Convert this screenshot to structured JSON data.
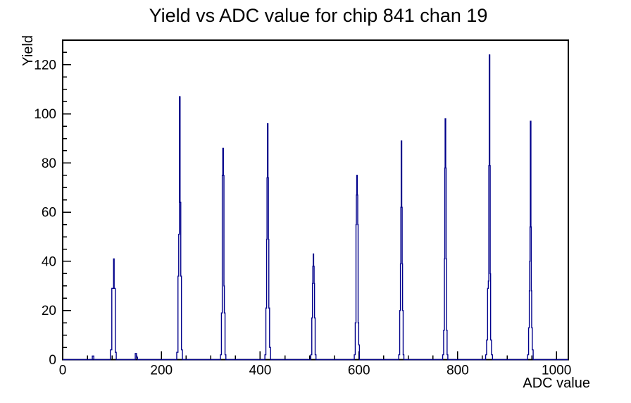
{
  "window": {
    "background": "#ffffff"
  },
  "chart_data": {
    "type": "bar",
    "subtype": "root-style step histogram of narrow peaks",
    "title": "Yield vs ADC value for chip 841 chan 19",
    "xlabel": "ADC value",
    "ylabel": "Yield",
    "xlim": [
      0,
      1024
    ],
    "ylim": [
      0,
      130
    ],
    "grid": false,
    "legend": null,
    "colors": {
      "line": "#00008b",
      "axis": "#000000",
      "background": "#ffffff",
      "text": "#000000"
    },
    "x_axis": {
      "major_ticks": [
        0,
        200,
        400,
        600,
        800,
        1000
      ],
      "major_labels": [
        "0",
        "200",
        "400",
        "600",
        "800",
        "1000"
      ],
      "minor_step": 50
    },
    "y_axis": {
      "major_ticks": [
        0,
        20,
        40,
        60,
        80,
        100,
        120
      ],
      "major_labels": [
        "0",
        "20",
        "40",
        "60",
        "80",
        "100",
        "120"
      ],
      "minor_step": 5
    },
    "peaks": [
      {
        "center": 61,
        "max_yield": 1.5,
        "profile": [
          [
            60,
            0
          ],
          [
            60,
            1.5
          ],
          [
            63,
            1.5
          ],
          [
            63,
            0
          ]
        ]
      },
      {
        "center": 104,
        "max_yield": 41,
        "profile": [
          [
            96.5,
            0
          ],
          [
            96.5,
            4
          ],
          [
            99.5,
            4
          ],
          [
            99.5,
            29
          ],
          [
            103,
            29
          ],
          [
            103,
            41
          ],
          [
            104.3,
            41
          ],
          [
            104.3,
            29
          ],
          [
            106.5,
            29
          ],
          [
            106.5,
            3
          ],
          [
            108.5,
            3
          ],
          [
            108.5,
            0
          ]
        ]
      },
      {
        "center": 149,
        "max_yield": 2.5,
        "profile": [
          [
            147,
            0
          ],
          [
            147,
            2.5
          ],
          [
            149.5,
            2.5
          ],
          [
            149.5,
            1
          ],
          [
            151.5,
            1
          ],
          [
            151.5,
            0
          ]
        ]
      },
      {
        "center": 237,
        "max_yield": 107,
        "profile": [
          [
            231,
            0
          ],
          [
            231,
            3
          ],
          [
            233.5,
            3
          ],
          [
            233.5,
            34
          ],
          [
            235,
            34
          ],
          [
            235,
            51
          ],
          [
            236.3,
            51
          ],
          [
            236.3,
            107
          ],
          [
            237.8,
            107
          ],
          [
            237.8,
            64
          ],
          [
            239.2,
            64
          ],
          [
            239.2,
            34
          ],
          [
            240.5,
            34
          ],
          [
            240.5,
            4
          ],
          [
            242.5,
            4
          ],
          [
            242.5,
            0
          ]
        ]
      },
      {
        "center": 325,
        "max_yield": 86,
        "profile": [
          [
            319.5,
            0
          ],
          [
            319.5,
            2
          ],
          [
            321.5,
            2
          ],
          [
            321.5,
            19
          ],
          [
            323.2,
            19
          ],
          [
            323.2,
            75
          ],
          [
            324.2,
            75
          ],
          [
            324.2,
            86
          ],
          [
            325.5,
            86
          ],
          [
            325.5,
            75
          ],
          [
            326.6,
            75
          ],
          [
            326.6,
            30
          ],
          [
            327.4,
            30
          ],
          [
            327.4,
            19
          ],
          [
            328.8,
            19
          ],
          [
            328.8,
            2
          ],
          [
            330.5,
            2
          ],
          [
            330.5,
            0
          ]
        ]
      },
      {
        "center": 415,
        "max_yield": 96,
        "profile": [
          [
            409.5,
            0
          ],
          [
            409.5,
            2
          ],
          [
            411.5,
            2
          ],
          [
            411.5,
            21
          ],
          [
            413,
            21
          ],
          [
            413,
            49
          ],
          [
            413.8,
            49
          ],
          [
            413.8,
            74
          ],
          [
            414.6,
            74
          ],
          [
            414.6,
            96
          ],
          [
            415.8,
            96
          ],
          [
            415.8,
            74
          ],
          [
            416.7,
            74
          ],
          [
            416.7,
            49
          ],
          [
            417.5,
            49
          ],
          [
            417.5,
            21
          ],
          [
            419,
            21
          ],
          [
            419,
            5
          ],
          [
            421,
            5
          ],
          [
            421,
            0
          ]
        ]
      },
      {
        "center": 508,
        "max_yield": 43,
        "profile": [
          [
            502.5,
            0
          ],
          [
            502.5,
            2
          ],
          [
            504.5,
            2
          ],
          [
            504.5,
            17
          ],
          [
            505.8,
            17
          ],
          [
            505.8,
            31
          ],
          [
            506.6,
            31
          ],
          [
            506.6,
            38
          ],
          [
            507.3,
            38
          ],
          [
            507.3,
            43
          ],
          [
            508.3,
            43
          ],
          [
            508.3,
            38
          ],
          [
            509.2,
            38
          ],
          [
            509.2,
            31
          ],
          [
            510,
            31
          ],
          [
            510,
            17
          ],
          [
            511.3,
            17
          ],
          [
            511.3,
            2
          ],
          [
            513,
            2
          ],
          [
            513,
            0
          ]
        ]
      },
      {
        "center": 596,
        "max_yield": 75,
        "profile": [
          [
            590.5,
            0
          ],
          [
            590.5,
            2
          ],
          [
            592.5,
            2
          ],
          [
            592.5,
            15
          ],
          [
            594,
            15
          ],
          [
            594,
            55
          ],
          [
            594.8,
            55
          ],
          [
            594.8,
            67
          ],
          [
            595.5,
            67
          ],
          [
            595.5,
            75
          ],
          [
            596.7,
            75
          ],
          [
            596.7,
            67
          ],
          [
            597.5,
            67
          ],
          [
            597.5,
            55
          ],
          [
            598.3,
            55
          ],
          [
            598.3,
            15
          ],
          [
            599.5,
            15
          ],
          [
            599.5,
            6
          ],
          [
            601,
            6
          ],
          [
            601,
            0
          ]
        ]
      },
      {
        "center": 686,
        "max_yield": 89,
        "profile": [
          [
            680.5,
            0
          ],
          [
            680.5,
            2
          ],
          [
            682.5,
            2
          ],
          [
            682.5,
            20
          ],
          [
            684,
            20
          ],
          [
            684,
            39
          ],
          [
            684.8,
            39
          ],
          [
            684.8,
            62
          ],
          [
            685.5,
            62
          ],
          [
            685.5,
            89
          ],
          [
            686.7,
            89
          ],
          [
            686.7,
            62
          ],
          [
            687.5,
            62
          ],
          [
            687.5,
            39
          ],
          [
            688.3,
            39
          ],
          [
            688.3,
            20
          ],
          [
            689.5,
            20
          ],
          [
            689.5,
            2
          ],
          [
            691,
            2
          ],
          [
            691,
            0
          ]
        ]
      },
      {
        "center": 775,
        "max_yield": 98,
        "profile": [
          [
            769.5,
            0
          ],
          [
            769.5,
            2
          ],
          [
            771.5,
            2
          ],
          [
            771.5,
            12
          ],
          [
            773,
            12
          ],
          [
            773,
            41
          ],
          [
            773.8,
            41
          ],
          [
            773.8,
            78
          ],
          [
            774.5,
            78
          ],
          [
            774.5,
            98
          ],
          [
            775.7,
            98
          ],
          [
            775.7,
            78
          ],
          [
            776.5,
            78
          ],
          [
            776.5,
            41
          ],
          [
            777.3,
            41
          ],
          [
            777.3,
            12
          ],
          [
            778.5,
            12
          ],
          [
            778.5,
            2
          ],
          [
            780,
            2
          ],
          [
            780,
            0
          ]
        ]
      },
      {
        "center": 865,
        "max_yield": 124,
        "profile": [
          [
            856.5,
            0
          ],
          [
            856.5,
            2
          ],
          [
            858.5,
            2
          ],
          [
            858.5,
            8
          ],
          [
            860.5,
            8
          ],
          [
            860.5,
            29
          ],
          [
            862,
            29
          ],
          [
            862,
            32
          ],
          [
            863,
            32
          ],
          [
            863,
            79
          ],
          [
            863.8,
            79
          ],
          [
            863.8,
            124
          ],
          [
            865,
            124
          ],
          [
            865,
            79
          ],
          [
            865.8,
            79
          ],
          [
            865.8,
            35
          ],
          [
            866.6,
            35
          ],
          [
            866.6,
            8
          ],
          [
            868.5,
            8
          ],
          [
            868.5,
            2
          ],
          [
            870.5,
            2
          ],
          [
            870.5,
            0
          ]
        ]
      },
      {
        "center": 947,
        "max_yield": 97,
        "profile": [
          [
            941.5,
            0
          ],
          [
            941.5,
            2
          ],
          [
            943.5,
            2
          ],
          [
            943.5,
            13
          ],
          [
            945,
            13
          ],
          [
            945,
            28
          ],
          [
            945.7,
            28
          ],
          [
            945.7,
            40
          ],
          [
            946.4,
            40
          ],
          [
            946.4,
            54
          ],
          [
            947.1,
            54
          ],
          [
            947.1,
            97
          ],
          [
            948.3,
            97
          ],
          [
            948.3,
            54
          ],
          [
            949,
            54
          ],
          [
            949,
            28
          ],
          [
            949.8,
            28
          ],
          [
            949.8,
            13
          ],
          [
            951,
            13
          ],
          [
            951,
            4
          ],
          [
            952.8,
            4
          ],
          [
            952.8,
            0
          ]
        ]
      }
    ]
  }
}
